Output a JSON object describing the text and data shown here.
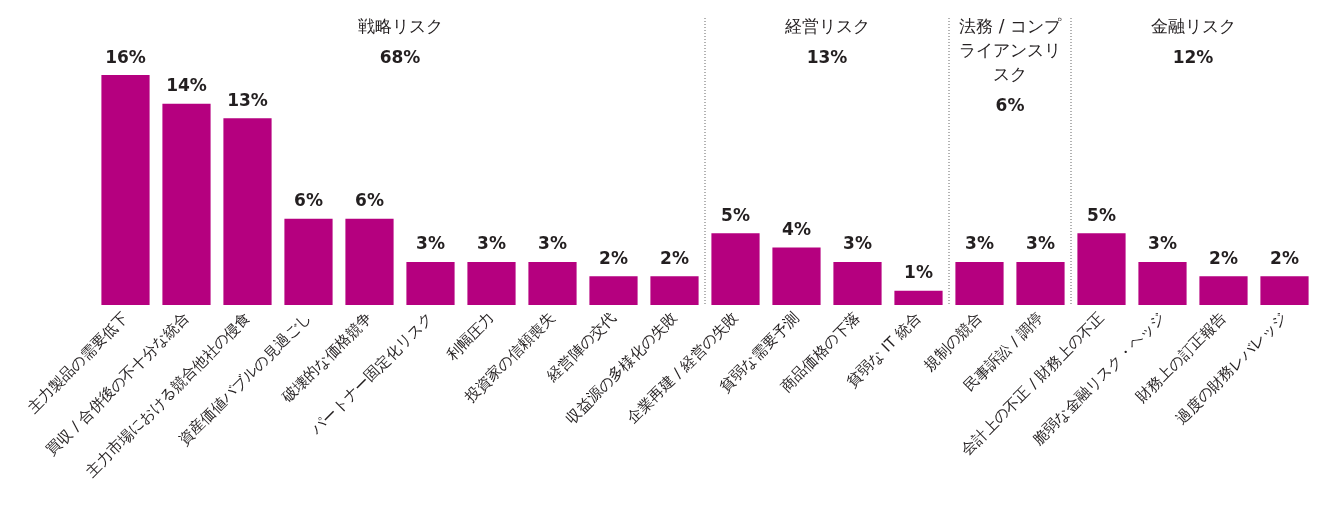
{
  "chart_data": {
    "type": "bar",
    "categories": [
      "主力製品の需要低下",
      "買収 / 合併後の不十分な統合",
      "主力市場における競合他社の侵食",
      "資産価値バブルの見過ごし",
      "破壊的な価格競争",
      "パートナー固定化リスク",
      "利幅圧力",
      "投資家の信頼喪失",
      "経営陣の交代",
      "収益源の多様化の失敗",
      "企業再建 / 経営の失敗",
      "貧弱な需要予測",
      "商品価格の下落",
      "貧弱な IT 統合",
      "規制の競合",
      "民事訴訟 / 調停",
      "会計上の不正 / 財務上の不正",
      "脆弱な金融リスク・ヘッジ",
      "財務上の訂正報告",
      "過度の財務レバレッジ"
    ],
    "values": [
      16,
      14,
      13,
      6,
      6,
      3,
      3,
      3,
      2,
      2,
      5,
      4,
      3,
      1,
      3,
      3,
      5,
      3,
      2,
      2
    ],
    "value_labels": [
      "16%",
      "14%",
      "13%",
      "6%",
      "6%",
      "3%",
      "3%",
      "3%",
      "2%",
      "2%",
      "5%",
      "4%",
      "3%",
      "1%",
      "3%",
      "3%",
      "5%",
      "3%",
      "2%",
      "2%"
    ],
    "color": "#b5007f",
    "annotations": [
      "戦略リスク",
      "68%",
      "経営リスク",
      "13%",
      "法務 / コンプライアンスリスク",
      "6%",
      "金融リスク",
      "12%"
    ]
  }
}
